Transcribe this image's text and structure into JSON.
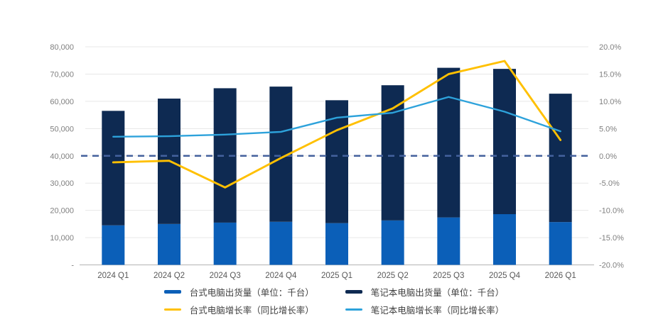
{
  "chart_data": {
    "type": "combo_stacked_bar_line",
    "title": "",
    "categories": [
      "2024 Q1",
      "2024 Q2",
      "2024 Q3",
      "2024 Q4",
      "2025 Q1",
      "2025 Q2",
      "2025 Q3",
      "2025 Q4",
      "2026 Q1"
    ],
    "bar_series": [
      {
        "name": "台式电脑出货量（单位：千台）",
        "kind": "stacked-bar",
        "stack_position": "bottom",
        "color": "#0B5FB8",
        "values": [
          14500,
          15000,
          15500,
          15800,
          15300,
          16300,
          17400,
          18600,
          15700
        ]
      },
      {
        "name": "笔记本电脑出货量（单位：千台）",
        "kind": "stacked-bar",
        "stack_position": "top",
        "color": "#0E2A52",
        "values": [
          42000,
          46000,
          49300,
          49600,
          45100,
          49600,
          54900,
          53300,
          47100
        ]
      }
    ],
    "line_series": [
      {
        "name": "台式电脑增长率（同比增长率）",
        "kind": "line",
        "axis": "right",
        "color": "#FFC000",
        "values_pct": [
          -1.2,
          -0.9,
          -5.8,
          -0.4,
          4.7,
          8.7,
          15.0,
          17.4,
          2.9
        ]
      },
      {
        "name": "笔记本电脑增长率（同比增长率）",
        "kind": "line",
        "axis": "right",
        "color": "#2DA2DB",
        "values_pct": [
          3.5,
          3.6,
          3.9,
          4.4,
          7.0,
          7.9,
          10.8,
          8.1,
          4.5
        ]
      }
    ],
    "left_axis": {
      "min": 0,
      "max": 80000,
      "step": 10000,
      "tick_values": [
        80000,
        70000,
        60000,
        50000,
        40000,
        30000,
        20000,
        10000,
        0
      ],
      "tick_labels": [
        "80,000",
        "70,000",
        "60,000",
        "50,000",
        "40,000",
        "30,000",
        "20,000",
        "10,000",
        "-"
      ]
    },
    "right_axis": {
      "min": -20,
      "max": 20,
      "step": 5,
      "tick_values": [
        20,
        15,
        10,
        5,
        0,
        -5,
        -10,
        -15,
        -20
      ],
      "tick_labels": [
        "20.0%",
        "15.0%",
        "10.0%",
        "5.0%",
        "0.0%",
        "-5.0%",
        "-10.0%",
        "-15.0%",
        "-20.0%"
      ]
    },
    "reference_line": {
      "axis": "right",
      "value_pct": 0,
      "style": "dashed",
      "color": "#44619D"
    },
    "grid": true,
    "grid_color": "#E7E7E7",
    "axis_line_color": "#BFBFBF",
    "legend_position": "bottom"
  }
}
